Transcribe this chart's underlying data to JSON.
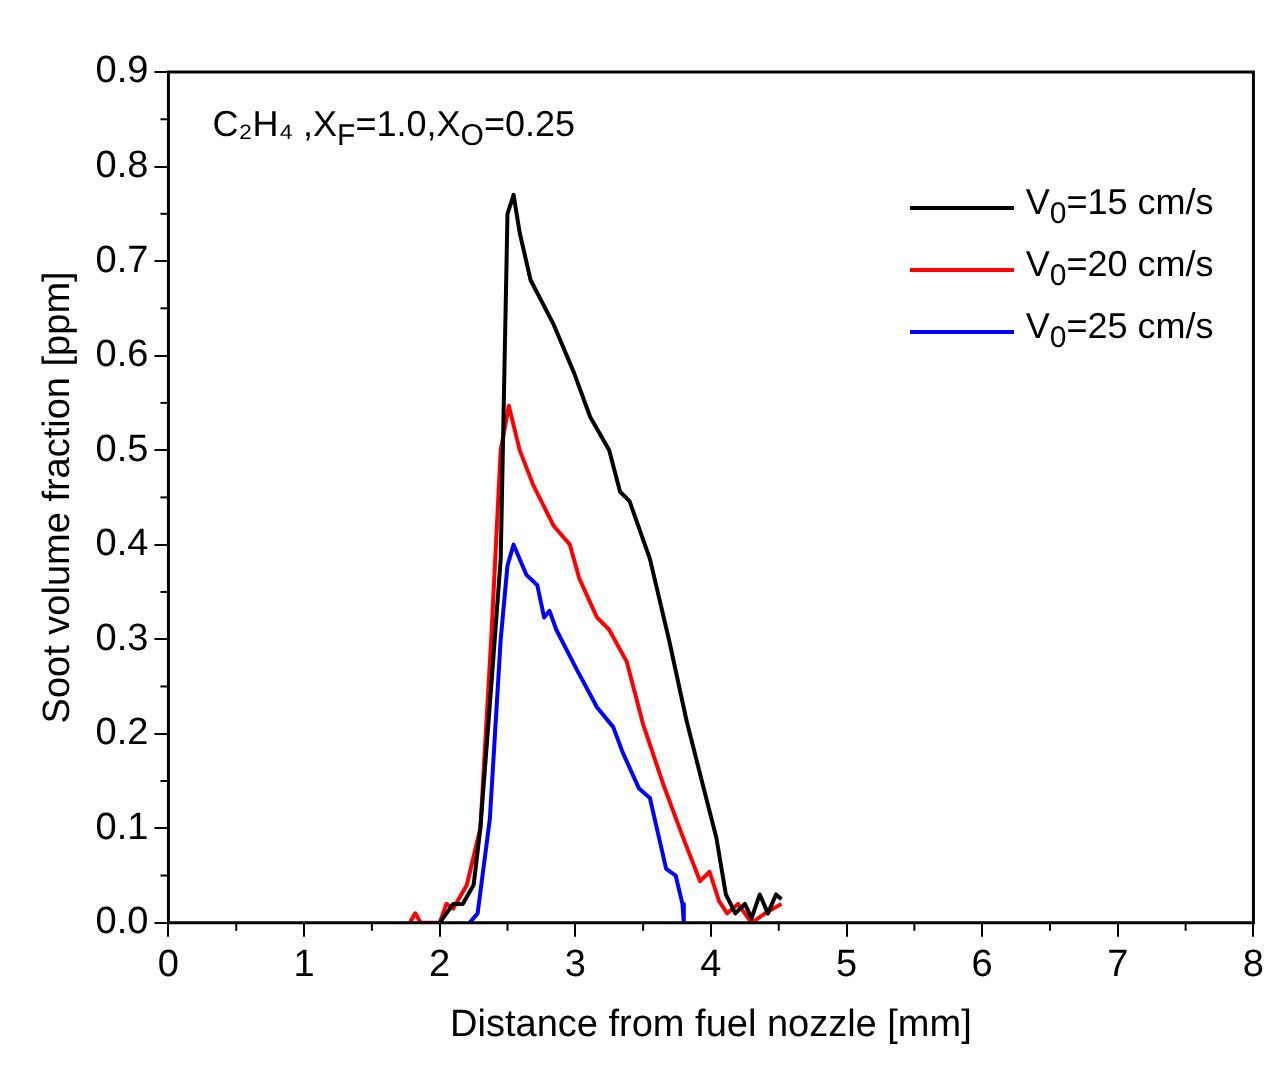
{
  "chart_data": {
    "type": "line",
    "xlabel": "Distance from fuel nozzle [mm]",
    "ylabel": "Soot volume fraction [ppm]",
    "annotations": [
      "C₂H₄ ,X$_{F}$=1.0,X$_{O}$=0.25"
    ],
    "xlim": [
      0,
      8
    ],
    "xticks": [
      0,
      1,
      2,
      3,
      4,
      5,
      6,
      7,
      8
    ],
    "ylim": [
      0,
      0.9
    ],
    "yticks": [
      {
        "value": 0,
        "label": "0.0"
      },
      0.1,
      0.2,
      0.3,
      0.4,
      0.5,
      0.6,
      0.7,
      0.8,
      0.9
    ],
    "grid": false,
    "legend": "top right",
    "marker": "none",
    "line_style": "solid",
    "series": [
      {
        "name": "V$_{0}$=15 cm/s",
        "color": "#000000",
        "x": [
          2.0,
          2.1,
          2.17,
          2.25,
          2.3,
          2.38,
          2.45,
          2.5,
          2.545,
          2.59,
          2.67,
          2.84,
          2.99,
          3.11,
          3.25,
          3.33,
          3.4,
          3.55,
          3.69,
          3.82,
          3.94,
          4.04,
          4.11,
          4.18,
          4.25,
          4.3,
          4.36,
          4.42,
          4.48,
          4.52
        ],
        "values": [
          0,
          0.02,
          0.02,
          0.04,
          0.1,
          0.25,
          0.385,
          0.75,
          0.77,
          0.73,
          0.68,
          0.633,
          0.582,
          0.535,
          0.5,
          0.456,
          0.446,
          0.385,
          0.3,
          0.214,
          0.146,
          0.09,
          0.03,
          0.01,
          0.02,
          0.005,
          0.03,
          0.01,
          0.03,
          0.025
        ]
      },
      {
        "name": "V$_{0}$=20 cm/s",
        "color": "#ff0000",
        "x": [
          1.78,
          1.82,
          1.86,
          2.0,
          2.05,
          2.1,
          2.2,
          2.3,
          2.38,
          2.45,
          2.51,
          2.59,
          2.69,
          2.84,
          2.96,
          3.03,
          3.16,
          3.25,
          3.38,
          3.5,
          3.65,
          3.79,
          3.92,
          3.99,
          4.06,
          4.12,
          4.2,
          4.3,
          4.4,
          4.52
        ],
        "values": [
          0,
          0.01,
          0,
          0,
          0.02,
          0.015,
          0.04,
          0.1,
          0.3,
          0.5,
          0.547,
          0.5,
          0.463,
          0.42,
          0.4,
          0.364,
          0.323,
          0.31,
          0.276,
          0.21,
          0.146,
          0.092,
          0.044,
          0.054,
          0.023,
          0.01,
          0.02,
          0,
          0.01,
          0.02
        ]
      },
      {
        "name": "V$_{0}$=25 cm/s",
        "color": "#0000ff",
        "x": [
          2.22,
          2.28,
          2.37,
          2.45,
          2.5,
          2.545,
          2.64,
          2.72,
          2.77,
          2.81,
          2.86,
          3.01,
          3.16,
          3.28,
          3.35,
          3.47,
          3.55,
          3.67,
          3.74,
          3.79,
          3.8
        ],
        "values": [
          0,
          0.01,
          0.11,
          0.3,
          0.378,
          0.4,
          0.368,
          0.357,
          0.323,
          0.33,
          0.31,
          0.268,
          0.228,
          0.207,
          0.18,
          0.142,
          0.132,
          0.057,
          0.05,
          0.02,
          0
        ]
      }
    ]
  }
}
